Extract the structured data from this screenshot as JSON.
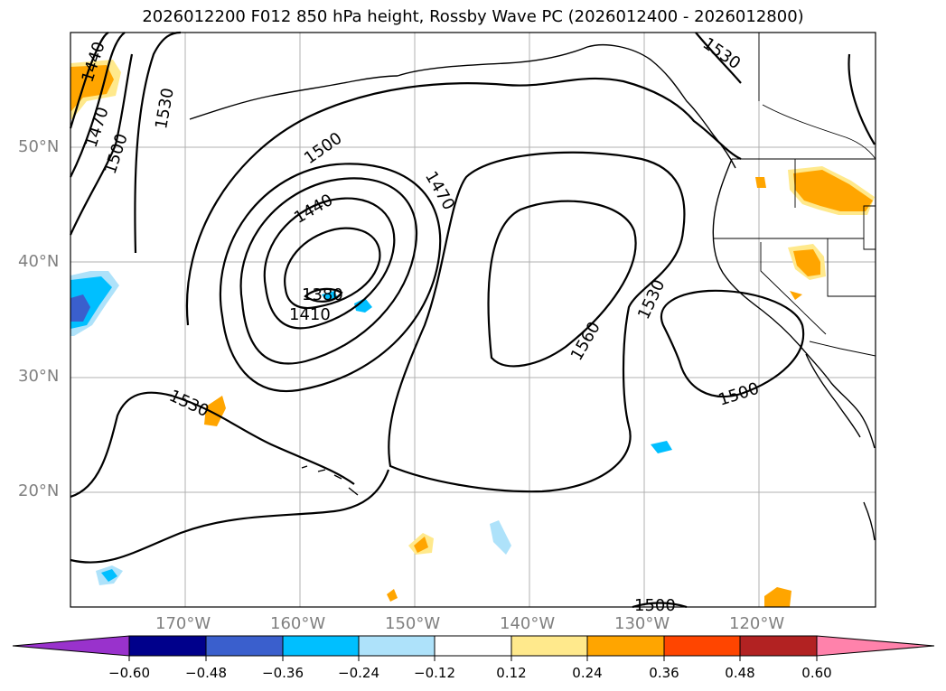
{
  "title": "2026012200 F012 850 hPa height, Rossby Wave PC (2026012400 - 2026012800)",
  "lat_labels": [
    "50°N",
    "40°N",
    "30°N",
    "20°N"
  ],
  "lon_labels": [
    "170°W",
    "160°W",
    "150°W",
    "140°W",
    "130°W",
    "120°W"
  ],
  "contour_labels": [
    "1440",
    "1470",
    "1500",
    "1530",
    "1500",
    "1440",
    "1470",
    "1380",
    "1410",
    "1560",
    "1530",
    "1500",
    "1530",
    "1500",
    "1530"
  ],
  "colorbar": {
    "ticks": [
      "−0.60",
      "−0.48",
      "−0.36",
      "−0.24",
      "−0.12",
      "0.12",
      "0.24",
      "0.36",
      "0.48",
      "0.60"
    ],
    "colors": [
      "#9932cc",
      "#00008b",
      "#3a5fcd",
      "#00bfff",
      "#aee2fa",
      "#ffffff",
      "#ffe98c",
      "#ffa500",
      "#ff4500",
      "#b22222",
      "#ff82ab"
    ]
  },
  "colors": {
    "land_outline": "#000000",
    "grid": "#b0b0b0",
    "positive_fill": "#ffa500",
    "positive_light": "#ffe98c",
    "negative_fill": "#00bfff",
    "negative_light": "#aee2fa",
    "negative_strong": "#3a5fcd"
  }
}
